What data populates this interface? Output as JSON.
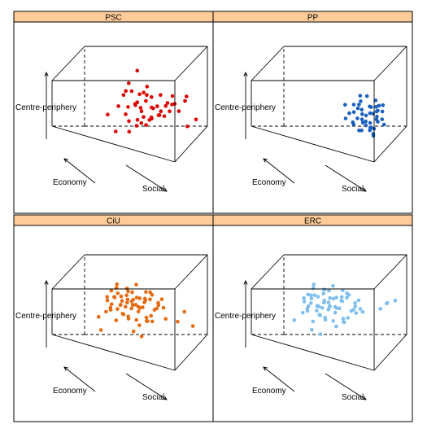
{
  "chart_data": [
    {
      "type": "scatter",
      "title": "PSC",
      "color": "#dd0000",
      "xlabel": "Economy",
      "ylabel": "Social",
      "zlabel": "Centre-periphery",
      "points": [
        [
          0.52,
          0.55,
          0.05
        ],
        [
          0.55,
          0.62,
          0.1
        ],
        [
          0.48,
          0.6,
          0.18
        ],
        [
          0.4,
          0.52,
          0.22
        ],
        [
          0.45,
          0.48,
          0.3
        ],
        [
          0.5,
          0.66,
          0.28
        ],
        [
          0.56,
          0.58,
          0.36
        ],
        [
          0.42,
          0.7,
          0.4
        ],
        [
          0.36,
          0.6,
          0.34
        ],
        [
          0.6,
          0.52,
          0.42
        ],
        [
          0.48,
          0.74,
          0.46
        ],
        [
          0.38,
          0.44,
          0.5
        ],
        [
          0.54,
          0.68,
          0.52
        ],
        [
          0.62,
          0.6,
          0.56
        ],
        [
          0.44,
          0.56,
          0.6
        ],
        [
          0.58,
          0.76,
          0.38
        ],
        [
          0.32,
          0.66,
          0.48
        ],
        [
          0.66,
          0.7,
          0.3
        ],
        [
          0.3,
          0.54,
          0.62
        ],
        [
          0.52,
          0.82,
          0.58
        ],
        [
          0.46,
          0.46,
          0.7
        ],
        [
          0.64,
          0.64,
          0.66
        ],
        [
          0.4,
          0.78,
          0.64
        ],
        [
          0.56,
          0.5,
          0.74
        ],
        [
          0.7,
          0.74,
          0.5
        ],
        [
          0.34,
          0.72,
          0.72
        ],
        [
          0.6,
          0.84,
          0.7
        ],
        [
          0.5,
          0.58,
          0.78
        ],
        [
          0.28,
          0.62,
          0.8
        ],
        [
          0.72,
          0.58,
          0.6
        ],
        [
          0.44,
          0.86,
          0.82
        ],
        [
          0.62,
          0.46,
          0.84
        ],
        [
          0.54,
          0.74,
          0.86
        ],
        [
          0.38,
          0.5,
          0.88
        ],
        [
          0.68,
          0.8,
          0.78
        ],
        [
          0.26,
          0.74,
          0.58
        ],
        [
          0.74,
          0.66,
          0.4
        ],
        [
          0.5,
          0.9,
          0.66
        ],
        [
          0.58,
          0.62,
          0.92
        ],
        [
          0.4,
          0.64,
          0.94
        ],
        [
          0.2,
          0.4,
          0.42
        ],
        [
          0.18,
          0.58,
          0.2
        ],
        [
          0.84,
          0.86,
          0.6
        ],
        [
          0.8,
          0.96,
          0.3
        ],
        [
          0.88,
          0.46,
          0.92
        ],
        [
          0.3,
          0.86,
          0.96
        ],
        [
          0.66,
          0.92,
          0.88
        ],
        [
          0.76,
          0.52,
          0.24
        ],
        [
          0.46,
          0.98,
          0.42
        ],
        [
          0.22,
          0.46,
          0.08
        ]
      ]
    },
    {
      "type": "scatter",
      "title": "PP",
      "color": "#1a5fbf",
      "xlabel": "Economy",
      "ylabel": "Social",
      "zlabel": "Centre-periphery",
      "points": [
        [
          0.22,
          0.84,
          0.4
        ],
        [
          0.26,
          0.9,
          0.48
        ],
        [
          0.2,
          0.88,
          0.56
        ],
        [
          0.24,
          0.8,
          0.62
        ],
        [
          0.3,
          0.92,
          0.44
        ],
        [
          0.18,
          0.92,
          0.66
        ],
        [
          0.28,
          0.86,
          0.7
        ],
        [
          0.34,
          0.94,
          0.58
        ],
        [
          0.22,
          0.96,
          0.74
        ],
        [
          0.3,
          0.82,
          0.78
        ],
        [
          0.16,
          0.86,
          0.82
        ],
        [
          0.36,
          0.88,
          0.84
        ],
        [
          0.26,
          0.96,
          0.9
        ],
        [
          0.2,
          0.78,
          0.5
        ],
        [
          0.32,
          0.98,
          0.68
        ],
        [
          0.14,
          0.94,
          0.6
        ],
        [
          0.24,
          0.9,
          0.96
        ],
        [
          0.38,
          0.92,
          0.76
        ],
        [
          0.18,
          0.82,
          0.9
        ],
        [
          0.28,
          0.76,
          0.86
        ],
        [
          0.4,
          0.86,
          0.66
        ],
        [
          0.12,
          0.9,
          0.72
        ],
        [
          0.34,
          0.8,
          0.92
        ],
        [
          0.3,
          0.96,
          0.98
        ],
        [
          0.22,
          0.74,
          0.7
        ],
        [
          0.42,
          0.96,
          0.9
        ],
        [
          0.16,
          0.98,
          0.86
        ],
        [
          0.36,
          0.74,
          0.62
        ],
        [
          0.26,
          0.84,
          0.54
        ],
        [
          0.44,
          0.9,
          0.8
        ],
        [
          0.1,
          0.8,
          0.64
        ],
        [
          0.32,
          0.88,
          0.36
        ],
        [
          0.2,
          0.94,
          0.42
        ],
        [
          0.38,
          0.98,
          0.52
        ],
        [
          0.14,
          0.84,
          0.46
        ],
        [
          0.46,
          0.82,
          0.96
        ],
        [
          0.24,
          0.7,
          0.84
        ],
        [
          0.4,
          0.78,
          0.98
        ],
        [
          0.12,
          0.96,
          0.94
        ],
        [
          0.48,
          0.94,
          0.7
        ],
        [
          0.18,
          0.72,
          0.6
        ],
        [
          0.5,
          0.88,
          0.88
        ],
        [
          0.08,
          0.88,
          0.78
        ],
        [
          0.28,
          0.92,
          0.3
        ],
        [
          0.44,
          0.76,
          0.74
        ]
      ]
    },
    {
      "type": "scatter",
      "title": "CiU",
      "color": "#e56a10",
      "xlabel": "Economy",
      "ylabel": "Social",
      "zlabel": "Centre-periphery",
      "points": [
        [
          0.5,
          0.4,
          0.5
        ],
        [
          0.52,
          0.46,
          0.58
        ],
        [
          0.48,
          0.52,
          0.62
        ],
        [
          0.44,
          0.44,
          0.66
        ],
        [
          0.56,
          0.5,
          0.7
        ],
        [
          0.46,
          0.58,
          0.72
        ],
        [
          0.54,
          0.42,
          0.76
        ],
        [
          0.42,
          0.5,
          0.78
        ],
        [
          0.58,
          0.56,
          0.8
        ],
        [
          0.5,
          0.62,
          0.82
        ],
        [
          0.4,
          0.4,
          0.84
        ],
        [
          0.6,
          0.46,
          0.86
        ],
        [
          0.48,
          0.48,
          0.88
        ],
        [
          0.52,
          0.66,
          0.9
        ],
        [
          0.38,
          0.56,
          0.92
        ],
        [
          0.62,
          0.6,
          0.94
        ],
        [
          0.44,
          0.64,
          0.96
        ],
        [
          0.56,
          0.38,
          0.98
        ],
        [
          0.46,
          0.36,
          0.9
        ],
        [
          0.34,
          0.48,
          0.86
        ],
        [
          0.64,
          0.52,
          0.74
        ],
        [
          0.36,
          0.62,
          0.8
        ],
        [
          0.58,
          0.68,
          0.64
        ],
        [
          0.42,
          0.34,
          0.7
        ],
        [
          0.66,
          0.44,
          0.62
        ],
        [
          0.5,
          0.72,
          0.76
        ],
        [
          0.32,
          0.4,
          0.74
        ],
        [
          0.62,
          0.36,
          0.84
        ],
        [
          0.4,
          0.7,
          0.66
        ],
        [
          0.54,
          0.56,
          0.54
        ],
        [
          0.46,
          0.46,
          0.46
        ],
        [
          0.56,
          0.62,
          0.44
        ],
        [
          0.38,
          0.52,
          0.52
        ],
        [
          0.6,
          0.4,
          0.52
        ],
        [
          0.48,
          0.56,
          0.4
        ],
        [
          0.44,
          0.66,
          0.48
        ],
        [
          0.52,
          0.34,
          0.42
        ],
        [
          0.66,
          0.64,
          0.88
        ],
        [
          0.3,
          0.58,
          0.88
        ],
        [
          0.7,
          0.5,
          0.96
        ],
        [
          0.36,
          0.44,
          0.98
        ],
        [
          0.58,
          0.74,
          0.92
        ],
        [
          0.42,
          0.6,
          0.36
        ],
        [
          0.54,
          0.48,
          0.32
        ],
        [
          0.34,
          0.68,
          0.58
        ],
        [
          0.68,
          0.58,
          0.7
        ],
        [
          0.28,
          0.5,
          0.64
        ],
        [
          0.48,
          0.78,
          0.84
        ],
        [
          0.62,
          0.7,
          0.78
        ],
        [
          0.4,
          0.76,
          0.94
        ],
        [
          0.72,
          0.42,
          0.8
        ],
        [
          0.3,
          0.36,
          0.56
        ],
        [
          0.56,
          0.3,
          0.64
        ],
        [
          0.46,
          0.4,
          0.28
        ],
        [
          0.64,
          0.34,
          0.6
        ],
        [
          0.5,
          0.52,
          0.96
        ],
        [
          0.6,
          0.64,
          0.98
        ],
        [
          0.36,
          0.38,
          0.62
        ],
        [
          0.52,
          0.6,
          0.68
        ],
        [
          0.44,
          0.54,
          0.74
        ],
        [
          0.24,
          0.6,
          0.36
        ],
        [
          0.26,
          0.66,
          0.28
        ],
        [
          0.74,
          0.62,
          0.22
        ],
        [
          0.7,
          0.74,
          0.4
        ],
        [
          0.82,
          0.86,
          0.56
        ],
        [
          0.84,
          0.8,
          0.28
        ],
        [
          0.78,
          0.94,
          0.34
        ],
        [
          0.22,
          0.34,
          0.2
        ],
        [
          0.76,
          0.48,
          0.46
        ],
        [
          0.3,
          0.3,
          0.4
        ]
      ]
    },
    {
      "type": "scatter",
      "title": "ERC",
      "color": "#7fbfef",
      "xlabel": "Economy",
      "ylabel": "Social",
      "zlabel": "Centre-periphery",
      "points": [
        [
          0.5,
          0.4,
          0.46
        ],
        [
          0.52,
          0.44,
          0.54
        ],
        [
          0.48,
          0.5,
          0.58
        ],
        [
          0.44,
          0.42,
          0.62
        ],
        [
          0.56,
          0.48,
          0.66
        ],
        [
          0.46,
          0.56,
          0.7
        ],
        [
          0.54,
          0.4,
          0.74
        ],
        [
          0.42,
          0.48,
          0.76
        ],
        [
          0.58,
          0.54,
          0.8
        ],
        [
          0.5,
          0.6,
          0.84
        ],
        [
          0.4,
          0.38,
          0.86
        ],
        [
          0.6,
          0.44,
          0.88
        ],
        [
          0.48,
          0.46,
          0.9
        ],
        [
          0.52,
          0.64,
          0.92
        ],
        [
          0.38,
          0.54,
          0.94
        ],
        [
          0.62,
          0.58,
          0.96
        ],
        [
          0.44,
          0.62,
          0.98
        ],
        [
          0.56,
          0.36,
          0.96
        ],
        [
          0.46,
          0.34,
          0.8
        ],
        [
          0.34,
          0.46,
          0.72
        ],
        [
          0.64,
          0.5,
          0.7
        ],
        [
          0.36,
          0.6,
          0.78
        ],
        [
          0.58,
          0.66,
          0.6
        ],
        [
          0.42,
          0.32,
          0.66
        ],
        [
          0.66,
          0.42,
          0.58
        ],
        [
          0.5,
          0.7,
          0.72
        ],
        [
          0.32,
          0.38,
          0.68
        ],
        [
          0.62,
          0.34,
          0.82
        ],
        [
          0.4,
          0.68,
          0.6
        ],
        [
          0.54,
          0.54,
          0.5
        ],
        [
          0.46,
          0.44,
          0.42
        ],
        [
          0.56,
          0.6,
          0.4
        ],
        [
          0.38,
          0.5,
          0.48
        ],
        [
          0.6,
          0.38,
          0.48
        ],
        [
          0.48,
          0.54,
          0.36
        ],
        [
          0.44,
          0.64,
          0.44
        ],
        [
          0.52,
          0.32,
          0.38
        ],
        [
          0.66,
          0.62,
          0.86
        ],
        [
          0.3,
          0.56,
          0.84
        ],
        [
          0.7,
          0.48,
          0.92
        ],
        [
          0.36,
          0.42,
          0.92
        ],
        [
          0.58,
          0.72,
          0.88
        ],
        [
          0.42,
          0.58,
          0.32
        ],
        [
          0.54,
          0.46,
          0.28
        ],
        [
          0.34,
          0.66,
          0.54
        ],
        [
          0.68,
          0.56,
          0.66
        ],
        [
          0.28,
          0.48,
          0.6
        ],
        [
          0.48,
          0.76,
          0.8
        ],
        [
          0.62,
          0.68,
          0.76
        ],
        [
          0.4,
          0.74,
          0.9
        ],
        [
          0.72,
          0.4,
          0.76
        ],
        [
          0.3,
          0.34,
          0.52
        ],
        [
          0.56,
          0.28,
          0.6
        ],
        [
          0.46,
          0.38,
          0.24
        ],
        [
          0.64,
          0.32,
          0.56
        ],
        [
          0.5,
          0.5,
          0.98
        ],
        [
          0.6,
          0.62,
          0.94
        ],
        [
          0.36,
          0.36,
          0.58
        ],
        [
          0.52,
          0.58,
          0.64
        ],
        [
          0.44,
          0.52,
          0.68
        ],
        [
          0.72,
          0.86,
          0.7
        ],
        [
          0.76,
          0.9,
          0.82
        ],
        [
          0.8,
          0.96,
          0.9
        ],
        [
          0.86,
          0.88,
          0.74
        ],
        [
          0.2,
          0.44,
          0.3
        ],
        [
          0.24,
          0.5,
          0.22
        ],
        [
          0.88,
          0.62,
          0.3
        ],
        [
          0.78,
          0.7,
          0.46
        ],
        [
          0.26,
          0.28,
          0.34
        ],
        [
          0.7,
          0.3,
          0.4
        ]
      ]
    }
  ]
}
